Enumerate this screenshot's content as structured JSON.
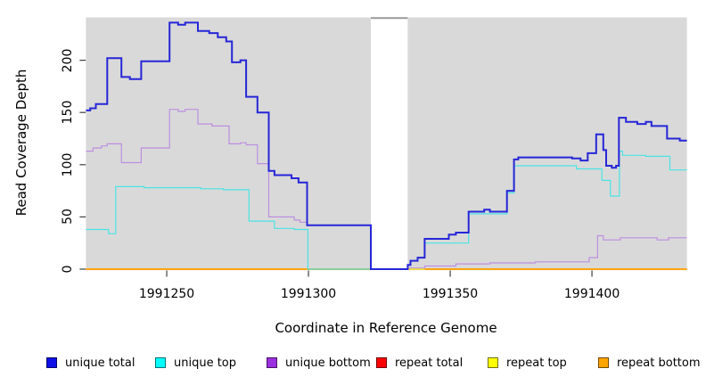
{
  "axes": {
    "x_title": "Coordinate in Reference Genome",
    "y_title": "Read Coverage Depth"
  },
  "legend": {
    "items": [
      {
        "label": "unique total",
        "color": "#0f0fe8"
      },
      {
        "label": "unique top",
        "color": "#00ffff"
      },
      {
        "label": "unique bottom",
        "color": "#9b30e0"
      },
      {
        "label": "repeat total",
        "color": "#ff0000"
      },
      {
        "label": "repeat top",
        "color": "#ffff00"
      },
      {
        "label": "repeat bottom",
        "color": "#ffa500"
      }
    ]
  },
  "chart_data": {
    "type": "line",
    "subtype": "step",
    "title": "",
    "xlabel": "Coordinate in Reference Genome",
    "ylabel": "Read Coverage Depth",
    "xlim": [
      1991221.5,
      1991433.5
    ],
    "ylim": [
      0,
      240
    ],
    "x_ticks": [
      1991250,
      1991300,
      1991350,
      1991400
    ],
    "y_ticks": [
      0,
      50,
      100,
      150,
      200
    ],
    "plot_bg": "#d9d9d9",
    "grid": false,
    "legend_position": "bottom",
    "data_blocks": [
      [
        1991221.5,
        1991322
      ],
      [
        1991335,
        1991433.5
      ]
    ],
    "no_data_gap": [
      1991322,
      1991335
    ],
    "series": [
      {
        "name": "repeat total",
        "color": "#e02020",
        "width": 1.2,
        "runs": [
          [
            [
              1991221.5,
              0
            ],
            [
              1991322,
              0
            ]
          ],
          [
            [
              1991335,
              0
            ],
            [
              1991433.5,
              0
            ]
          ]
        ]
      },
      {
        "name": "repeat top",
        "color": "#ffff00",
        "width": 1.2,
        "runs": [
          [
            [
              1991221.5,
              0
            ],
            [
              1991322,
              0
            ]
          ],
          [
            [
              1991335,
              0
            ],
            [
              1991433.5,
              0
            ]
          ]
        ]
      },
      {
        "name": "repeat bottom",
        "color": "#ff9f00",
        "width": 1.7,
        "runs": [
          [
            [
              1991221.5,
              0
            ],
            [
              1991322,
              0
            ]
          ],
          [
            [
              1991341,
              0
            ],
            [
              1991433.5,
              0
            ]
          ]
        ]
      },
      {
        "name": "unique bottom",
        "color": "#bd8fe0",
        "width": 1.2,
        "runs": [
          [
            [
              1991221.5,
              113
            ],
            [
              1991224,
              116
            ],
            [
              1991227,
              118
            ],
            [
              1991229,
              120
            ],
            [
              1991234,
              102
            ],
            [
              1991241,
              116
            ],
            [
              1991251,
              153
            ],
            [
              1991254,
              151
            ],
            [
              1991256.5,
              153
            ],
            [
              1991261,
              139
            ],
            [
              1991266,
              137
            ],
            [
              1991272,
              120
            ],
            [
              1991276,
              121
            ],
            [
              1991278,
              119
            ],
            [
              1991282,
              101
            ],
            [
              1991286,
              50
            ],
            [
              1991295,
              47
            ],
            [
              1991297,
              45
            ],
            [
              1991299.5,
              42
            ],
            [
              1991322,
              0
            ],
            [
              1991335,
              1
            ],
            [
              1991341,
              3
            ],
            [
              1991352,
              5
            ],
            [
              1991364,
              6
            ],
            [
              1991380,
              7
            ],
            [
              1991399,
              11
            ],
            [
              1991402,
              32
            ],
            [
              1991404,
              28
            ],
            [
              1991410,
              30
            ],
            [
              1991423,
              28
            ],
            [
              1991427,
              30
            ],
            [
              1991433.5,
              30
            ]
          ]
        ]
      },
      {
        "name": "unique top",
        "color": "#4ae4e4",
        "width": 1.2,
        "runs": [
          [
            [
              1991221.5,
              38
            ],
            [
              1991229.5,
              34
            ],
            [
              1991232,
              79
            ],
            [
              1991242,
              78
            ],
            [
              1991262,
              77
            ],
            [
              1991270,
              76
            ],
            [
              1991279,
              46
            ],
            [
              1991288,
              39
            ],
            [
              1991295,
              38
            ],
            [
              1991299.8,
              0
            ],
            [
              1991335,
              4
            ],
            [
              1991336,
              8
            ],
            [
              1991338.5,
              11
            ],
            [
              1991341,
              25
            ],
            [
              1991356.5,
              53
            ],
            [
              1991370,
              73
            ],
            [
              1991372.5,
              99
            ],
            [
              1991394.5,
              96
            ],
            [
              1991403.5,
              85
            ],
            [
              1991406.5,
              70
            ],
            [
              1991409.7,
              113
            ],
            [
              1991410.8,
              109
            ],
            [
              1991419,
              108
            ],
            [
              1991427.5,
              95
            ],
            [
              1991433.5,
              95
            ]
          ]
        ]
      },
      {
        "name": "unique total",
        "color": "#2626d8",
        "width": 2,
        "runs": [
          [
            [
              1991221.5,
              152
            ],
            [
              1991223,
              154
            ],
            [
              1991225,
              158
            ],
            [
              1991229,
              202
            ],
            [
              1991234,
              184
            ],
            [
              1991237,
              182
            ],
            [
              1991241,
              199
            ],
            [
              1991251,
              236
            ],
            [
              1991254,
              234
            ],
            [
              1991256.5,
              236
            ],
            [
              1991261,
              228
            ],
            [
              1991265,
              226
            ],
            [
              1991268,
              222
            ],
            [
              1991271,
              218
            ],
            [
              1991273,
              198
            ],
            [
              1991276,
              200
            ],
            [
              1991278,
              165
            ],
            [
              1991282,
              150
            ],
            [
              1991286,
              94
            ],
            [
              1991288,
              90
            ],
            [
              1991294,
              87
            ],
            [
              1991296.5,
              83
            ],
            [
              1991299.5,
              42
            ],
            [
              1991322,
              0
            ],
            [
              1991335,
              4
            ],
            [
              1991336,
              8
            ],
            [
              1991338.5,
              11
            ],
            [
              1991341,
              29
            ],
            [
              1991349.5,
              33
            ],
            [
              1991352,
              35
            ],
            [
              1991356.5,
              55
            ],
            [
              1991362,
              57
            ],
            [
              1991364,
              55
            ],
            [
              1991370,
              75
            ],
            [
              1991372.5,
              105
            ],
            [
              1991374,
              107
            ],
            [
              1991393,
              106
            ],
            [
              1991396,
              104
            ],
            [
              1991398.5,
              111
            ],
            [
              1991401.5,
              129
            ],
            [
              1991404,
              114
            ],
            [
              1991405,
              99
            ],
            [
              1991407,
              97
            ],
            [
              1991408.5,
              99
            ],
            [
              1991409.5,
              145
            ],
            [
              1991412,
              141
            ],
            [
              1991416,
              139
            ],
            [
              1991419,
              141
            ],
            [
              1991421,
              137
            ],
            [
              1991426.5,
              125
            ],
            [
              1991431,
              123
            ],
            [
              1991433.5,
              123
            ]
          ]
        ]
      }
    ]
  }
}
